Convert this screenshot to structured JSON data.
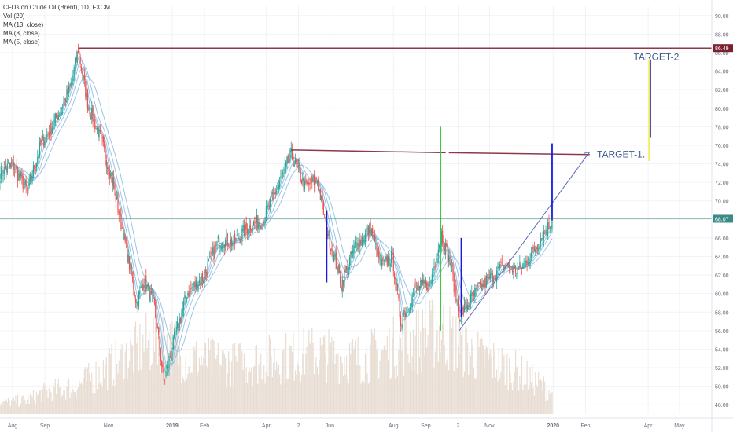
{
  "legend": {
    "symbol": "CFDs on Crude Oil (Brent), 1D, FXCM",
    "vol": "Vol (20)",
    "ma13": "MA (13, close)",
    "ma8": "MA (8, close)",
    "ma5": "MA (5, close)"
  },
  "colors": {
    "up": "#26a69a",
    "down": "#ef5350",
    "ma": "#7fb6de",
    "volume": "#e8ddd3",
    "resistance": "#8b3a4a",
    "green_line": "#3ec63e",
    "blue_line": "#1a1adb",
    "yellow_line": "#f5ee4a",
    "trend": "#5a6bb5",
    "last_price_bg": "#3a8a86",
    "top_level_bg": "#7a2130"
  },
  "chart_data": {
    "type": "candlestick",
    "symbol": "CFDs on Crude Oil (Brent)",
    "timeframe": "1D",
    "source": "FXCM",
    "ylim": [
      47,
      91
    ],
    "x_range": [
      "2018-07-20",
      "2020-06-01"
    ],
    "y_ticks": [
      48,
      50,
      52,
      54,
      56,
      58,
      60,
      62,
      64,
      66,
      68,
      70,
      72,
      74,
      76,
      78,
      80,
      82,
      84,
      86,
      88,
      90
    ],
    "y_tick_labels": [
      "48.00",
      "50.00",
      "52.00",
      "54.00",
      "56.00",
      "58.00",
      "60.00",
      "62.00",
      "64.00",
      "66.00",
      "68.00",
      "70.00",
      "72.00",
      "74.00",
      "76.00",
      "78.00",
      "80.00",
      "82.00",
      "84.00",
      "86.00",
      "88.00",
      "90.00"
    ],
    "x_ticks": [
      {
        "label": "Aug",
        "date": "2018-08-01"
      },
      {
        "label": "Sep",
        "date": "2018-09-01"
      },
      {
        "label": "Nov",
        "date": "2018-11-01"
      },
      {
        "label": "2019",
        "date": "2019-01-01"
      },
      {
        "label": "Feb",
        "date": "2019-02-01"
      },
      {
        "label": "Apr",
        "date": "2019-04-01"
      },
      {
        "label": "2",
        "date": "2019-05-02"
      },
      {
        "label": "Jun",
        "date": "2019-06-01"
      },
      {
        "label": "Aug",
        "date": "2019-08-01"
      },
      {
        "label": "Sep",
        "date": "2019-09-01"
      },
      {
        "label": "2",
        "date": "2019-10-02"
      },
      {
        "label": "Nov",
        "date": "2019-11-01"
      },
      {
        "label": "2020",
        "date": "2020-01-01"
      },
      {
        "label": "Feb",
        "date": "2020-02-01"
      },
      {
        "label": "Apr",
        "date": "2020-04-01"
      },
      {
        "label": "May",
        "date": "2020-05-01"
      }
    ],
    "price_path": [
      [
        "2018-07-20",
        73.0
      ],
      [
        "2018-08-01",
        74.0
      ],
      [
        "2018-08-15",
        71.0
      ],
      [
        "2018-08-28",
        76.0
      ],
      [
        "2018-09-10",
        78.5
      ],
      [
        "2018-09-25",
        82.0
      ],
      [
        "2018-10-03",
        86.3
      ],
      [
        "2018-10-12",
        80.5
      ],
      [
        "2018-10-25",
        76.5
      ],
      [
        "2018-11-05",
        72.0
      ],
      [
        "2018-11-15",
        66.5
      ],
      [
        "2018-11-28",
        59.0
      ],
      [
        "2018-12-05",
        61.5
      ],
      [
        "2018-12-15",
        58.5
      ],
      [
        "2018-12-24",
        50.5
      ],
      [
        "2019-01-03",
        55.0
      ],
      [
        "2019-01-15",
        60.0
      ],
      [
        "2019-01-31",
        61.8
      ],
      [
        "2019-02-15",
        65.8
      ],
      [
        "2019-03-01",
        65.5
      ],
      [
        "2019-03-15",
        67.2
      ],
      [
        "2019-03-29",
        68.0
      ],
      [
        "2019-04-12",
        71.5
      ],
      [
        "2019-04-25",
        75.0
      ],
      [
        "2019-05-08",
        71.5
      ],
      [
        "2019-05-20",
        72.2
      ],
      [
        "2019-05-30",
        66.5
      ],
      [
        "2019-06-12",
        61.0
      ],
      [
        "2019-06-25",
        65.0
      ],
      [
        "2019-07-10",
        67.0
      ],
      [
        "2019-07-20",
        63.0
      ],
      [
        "2019-07-31",
        64.0
      ],
      [
        "2019-08-08",
        57.0
      ],
      [
        "2019-08-22",
        60.5
      ],
      [
        "2019-09-05",
        61.0
      ],
      [
        "2019-09-16",
        66.5
      ],
      [
        "2019-09-25",
        63.0
      ],
      [
        "2019-10-03",
        57.5
      ],
      [
        "2019-10-18",
        60.0
      ],
      [
        "2019-11-01",
        61.7
      ],
      [
        "2019-11-15",
        63.0
      ],
      [
        "2019-11-29",
        62.5
      ],
      [
        "2019-12-10",
        64.0
      ],
      [
        "2019-12-20",
        66.0
      ],
      [
        "2019-12-31",
        67.9
      ]
    ],
    "volume_envelope": [
      [
        "2018-07-20",
        0.04
      ],
      [
        "2018-08-15",
        0.05
      ],
      [
        "2018-09-01",
        0.08
      ],
      [
        "2018-10-01",
        0.1
      ],
      [
        "2018-11-15",
        0.2
      ],
      [
        "2018-12-20",
        0.28
      ],
      [
        "2019-01-15",
        0.2
      ],
      [
        "2019-03-01",
        0.18
      ],
      [
        "2019-05-15",
        0.22
      ],
      [
        "2019-07-01",
        0.2
      ],
      [
        "2019-09-16",
        0.3
      ],
      [
        "2019-10-15",
        0.22
      ],
      [
        "2019-12-01",
        0.15
      ],
      [
        "2019-12-31",
        0.08
      ]
    ],
    "resistance_lines": [
      {
        "y": 86.49,
        "x_start": "2018-10-03",
        "x_end": "2020-06-01",
        "name": "top level"
      },
      {
        "y1": 75.5,
        "y2": 75.2,
        "x_start": "2019-04-25",
        "x_end": "2019-09-20",
        "name": "resistance left"
      },
      {
        "y1": 75.2,
        "y2": 75.0,
        "x_start": "2019-09-23",
        "x_end": "2020-02-05",
        "name": "resistance right"
      }
    ],
    "trend_line": {
      "x1": "2019-10-03",
      "y1": 56.0,
      "x2": "2020-02-05",
      "y2": 75.3
    },
    "vertical_lines": [
      {
        "x": "2019-05-29",
        "y1": 61.2,
        "y2": 69.0,
        "color": "blue"
      },
      {
        "x": "2019-09-15",
        "y1": 56.0,
        "y2": 78.0,
        "color": "green"
      },
      {
        "x": "2019-10-05",
        "y1": 57.5,
        "y2": 66.0,
        "color": "blue"
      },
      {
        "x": "2019-12-31",
        "y1": 67.9,
        "y2": 76.2,
        "color": "blue"
      },
      {
        "x": "2020-04-02",
        "y1": 74.3,
        "y2": 85.2,
        "color": "yellow"
      },
      {
        "x": "2020-04-02",
        "y1": 76.8,
        "y2": 85.2,
        "color": "blue"
      }
    ],
    "annotations": [
      {
        "text": "TARGET-1.",
        "x": "2020-02-12",
        "y": 74.7
      },
      {
        "text": "TARGET-2",
        "x": "2020-03-18",
        "y": 85.2
      }
    ],
    "price_labels": [
      {
        "text": "86.49",
        "y": 86.49,
        "kind": "top"
      },
      {
        "text": "68.07",
        "y": 68.07,
        "kind": "last"
      }
    ],
    "last_price": 68.07
  }
}
